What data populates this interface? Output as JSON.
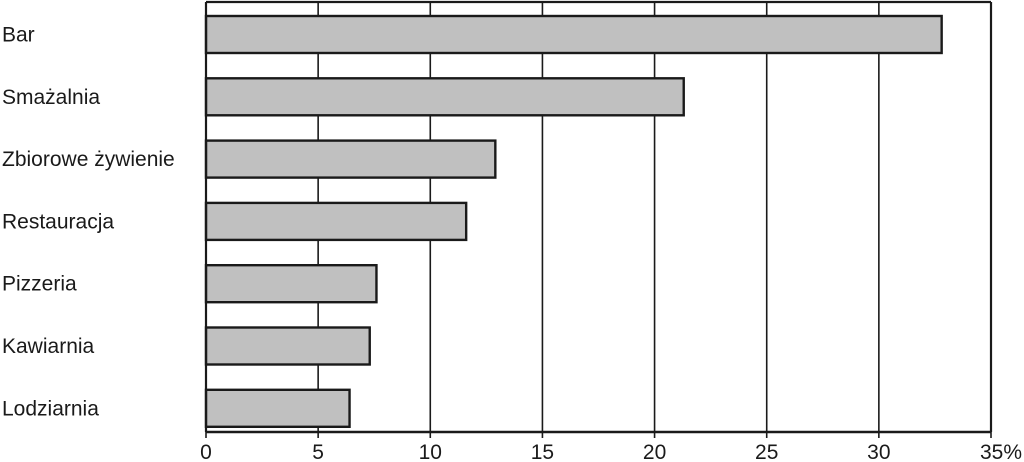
{
  "chart_data": {
    "type": "bar",
    "orientation": "horizontal",
    "title": "",
    "xlabel": "",
    "ylabel": "",
    "categories": [
      "Bar",
      "Smażalnia",
      "Zbiorowe żywienie",
      "Restauracja",
      "Pizzeria",
      "Kawiarnia",
      "Lodziarnia"
    ],
    "values": [
      32.8,
      21.3,
      12.9,
      11.6,
      7.6,
      7.3,
      6.4
    ],
    "xlim": [
      0,
      35
    ],
    "x_ticks": [
      0,
      5,
      10,
      15,
      20,
      25,
      30,
      35
    ],
    "x_tick_labels": [
      "0",
      "5",
      "10",
      "15",
      "20",
      "25",
      "30",
      "35%"
    ],
    "grid": "vertical",
    "legend": "none",
    "colors": {
      "bar_fill": "#c0c0c0",
      "bar_stroke": "#1a1a1a",
      "grid": "#1a1a1a",
      "axis": "#1a1a1a",
      "background": "#ffffff"
    }
  }
}
